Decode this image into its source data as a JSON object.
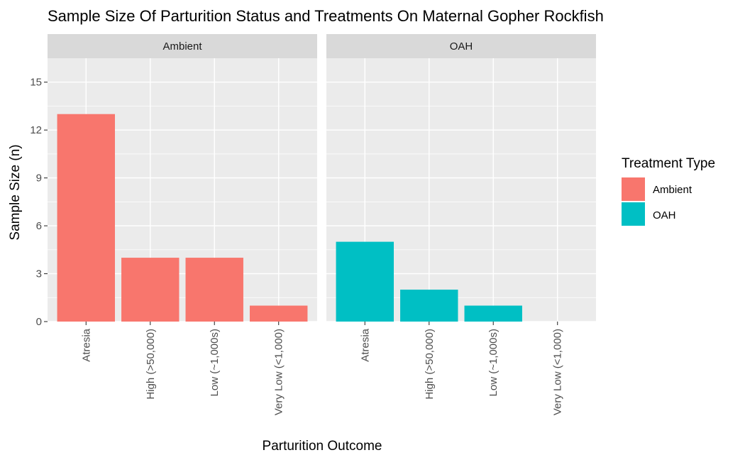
{
  "chart_data": {
    "type": "bar",
    "title": "Sample Size Of Parturition Status and Treatments On Maternal Gopher Rockfish",
    "xlabel": "Parturition Outcome",
    "ylabel": "Sample Size (n)",
    "ylim": [
      0,
      16.5
    ],
    "yticks": [
      0,
      3,
      6,
      9,
      12,
      15
    ],
    "grid": true,
    "categories": [
      "Atresia",
      "High (>50,000)",
      "Low (~1,000s)",
      "Very Low (<1,000)"
    ],
    "facets": [
      {
        "label": "Ambient",
        "color": "#F8766D",
        "values": [
          13,
          4,
          4,
          1
        ]
      },
      {
        "label": "OAH",
        "color": "#00BFC4",
        "values": [
          5,
          2,
          1,
          0
        ]
      }
    ],
    "legend": {
      "title": "Treatment Type",
      "position": "right",
      "items": [
        {
          "label": "Ambient",
          "color": "#F8766D"
        },
        {
          "label": "OAH",
          "color": "#00BFC4"
        }
      ]
    }
  }
}
